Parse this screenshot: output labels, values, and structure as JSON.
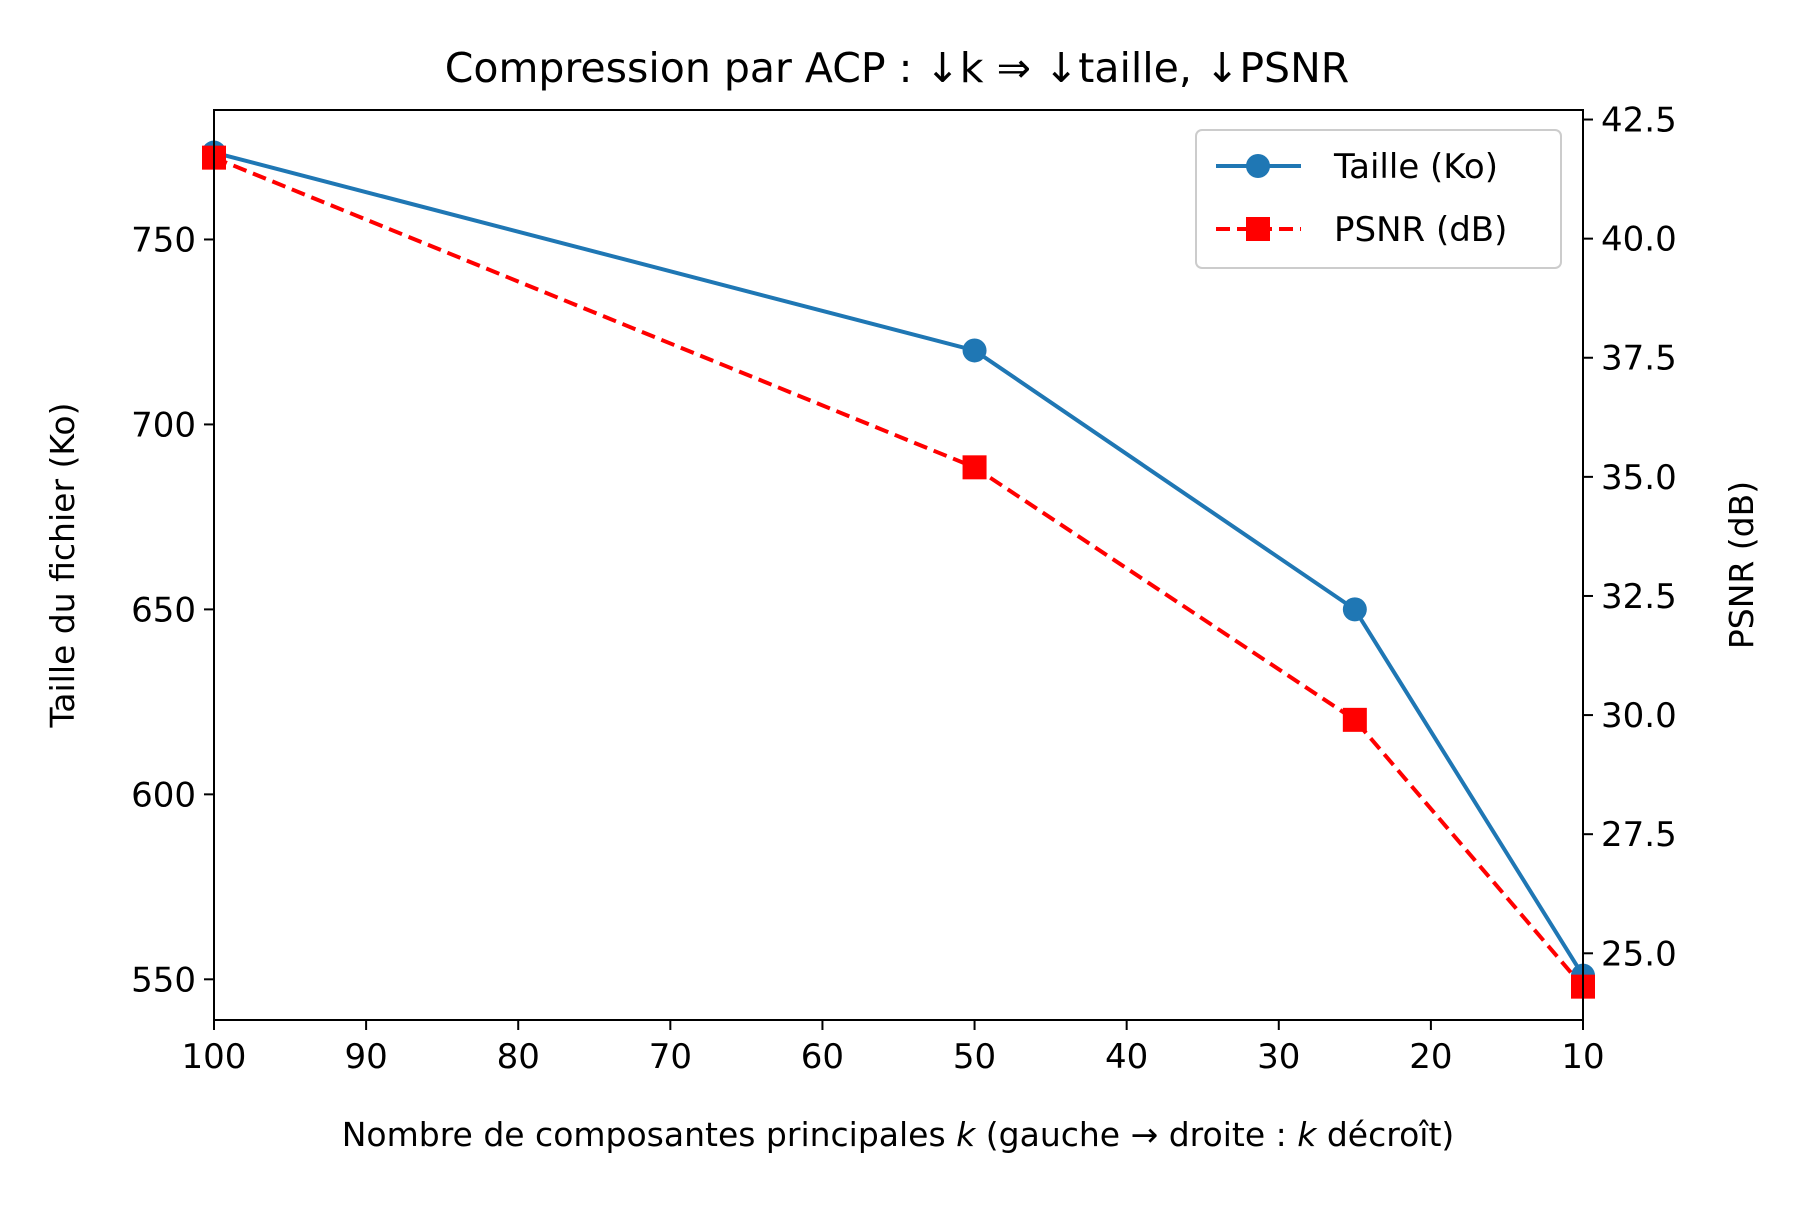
{
  "chart_data": {
    "type": "line",
    "title": "Compression par ACP : ↓k ⇒ ↓taille, ↓PSNR",
    "xlabel_prefix": "Nombre de composantes principales ",
    "xlabel_var1": "k",
    "xlabel_middle": " (gauche → droite : ",
    "xlabel_var2": "k",
    "xlabel_suffix": " décroît)",
    "ylabel_left": "Taille du fichier (Ko)",
    "ylabel_right": "PSNR (dB)",
    "x": [
      100,
      50,
      25,
      10
    ],
    "x_ticks": [
      100,
      90,
      80,
      70,
      60,
      50,
      40,
      30,
      20,
      10
    ],
    "x_tick_labels": [
      "100",
      "90",
      "80",
      "70",
      "60",
      "50",
      "40",
      "30",
      "20",
      "10"
    ],
    "xlim": [
      100,
      10
    ],
    "x_inverted": true,
    "ylim_left": [
      539,
      785
    ],
    "y_left_ticks": [
      550,
      600,
      650,
      700,
      750
    ],
    "y_left_tick_labels": [
      "550",
      "600",
      "650",
      "700",
      "750"
    ],
    "ylim_right": [
      23.6,
      42.7
    ],
    "y_right_ticks": [
      25.0,
      27.5,
      30.0,
      32.5,
      35.0,
      37.5,
      40.0,
      42.5
    ],
    "y_right_tick_labels": [
      "25.0",
      "27.5",
      "30.0",
      "32.5",
      "35.0",
      "37.5",
      "40.0",
      "42.5"
    ],
    "grid": false,
    "legend_position": "top-right",
    "series": [
      {
        "name": "Taille (Ko)",
        "axis": "left",
        "values": [
          773.5,
          720,
          650,
          551
        ],
        "color": "#1f77b4",
        "marker": "circle",
        "linestyle": "solid"
      },
      {
        "name": "PSNR (dB)",
        "axis": "right",
        "values": [
          41.7,
          35.2,
          29.9,
          24.3
        ],
        "color": "#ff0000",
        "marker": "square",
        "linestyle": "dashed"
      }
    ]
  }
}
